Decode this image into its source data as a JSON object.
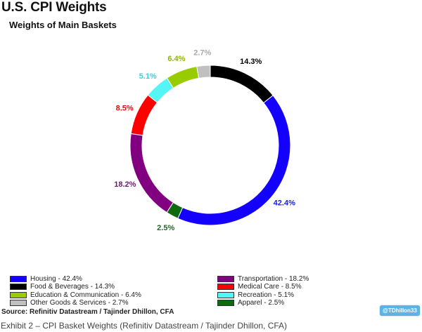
{
  "chart_data": {
    "type": "pie",
    "donut": true,
    "title": "U.S. CPI Weights",
    "subtitle": "Weights of Main Baskets",
    "slices": [
      {
        "label": "Food & Beverages",
        "value": 14.3,
        "display": "14.3%",
        "legend": "Food & Beverages - 14.3%",
        "color": "#000000",
        "label_color": "#000000"
      },
      {
        "label": "Housing",
        "value": 42.4,
        "display": "42.4%",
        "legend": "Housing - 42.4%",
        "color": "#1400ff",
        "label_color": "#1a24d8"
      },
      {
        "label": "Apparel",
        "value": 2.5,
        "display": "2.5%",
        "legend": "Apparel - 2.5%",
        "color": "#0d6b0d",
        "label_color": "#1f6b1f"
      },
      {
        "label": "Transportation",
        "value": 18.2,
        "display": "18.2%",
        "legend": "Transportation - 18.2%",
        "color": "#800080",
        "label_color": "#6a1a6a"
      },
      {
        "label": "Medical Care",
        "value": 8.5,
        "display": "8.5%",
        "legend": "Medical Care - 8.5%",
        "color": "#ff0000",
        "label_color": "#e01010"
      },
      {
        "label": "Recreation",
        "value": 5.1,
        "display": "5.1%",
        "legend": "Recreation - 5.1%",
        "color": "#55f5f5",
        "label_color": "#3ccfd8"
      },
      {
        "label": "Education & Communication",
        "value": 6.4,
        "display": "6.4%",
        "legend": "Education & Communication - 6.4%",
        "color": "#99cc00",
        "label_color": "#8cb800"
      },
      {
        "label": "Other Goods & Services",
        "value": 2.7,
        "display": "2.7%",
        "legend": "Other Goods & Services - 2.7%",
        "color": "#c0c0c0",
        "label_color": "#a8a8a8"
      }
    ],
    "legend_order": [
      "Housing",
      "Transportation",
      "Food & Beverages",
      "Medical Care",
      "Education & Communication",
      "Recreation",
      "Other Goods & Services",
      "Apparel"
    ],
    "legend_position": "bottom"
  },
  "source": "Source: Refinitiv Datastream / Tajinder Dhillon, CFA",
  "handle": "@TDhillon33",
  "caption": "Exhibit 2 – CPI Basket Weights (Refinitiv Datastream / Tajinder Dhillon, CFA)"
}
